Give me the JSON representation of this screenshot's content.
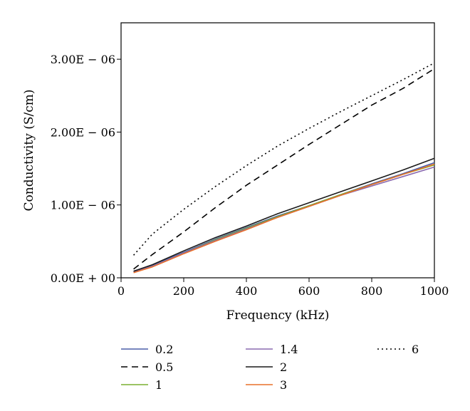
{
  "chart_data": {
    "type": "line",
    "title": "",
    "xlabel": "Frequency (kHz)",
    "ylabel": "Conductivity (S/cm)",
    "xlim": [
      0,
      1000
    ],
    "ylim": [
      0,
      3.5e-06
    ],
    "x_ticks": [
      0,
      200,
      400,
      600,
      800,
      1000
    ],
    "x_tick_labels": [
      "0",
      "200",
      "400",
      "600",
      "800",
      "1000"
    ],
    "y_ticks": [
      0,
      1e-06,
      2e-06,
      3e-06
    ],
    "y_tick_labels": [
      "0.00E + 00",
      "1.00E − 06",
      "2.00E − 06",
      "3.00E − 06"
    ],
    "grid": false,
    "legend_position": "bottom",
    "series": [
      {
        "name": "0.2",
        "color": "#4a5fa8",
        "dash": "solid",
        "x": [
          40,
          100,
          200,
          300,
          400,
          500,
          600,
          700,
          800,
          900,
          1000
        ],
        "y": [
          9e-08,
          1.7e-07,
          3.5e-07,
          5.3e-07,
          6.9e-07,
          8.5e-07,
          9.9e-07,
          1.14e-06,
          1.29e-06,
          1.43e-06,
          1.58e-06
        ]
      },
      {
        "name": "0.5",
        "color": "#000000",
        "dash": "dashed",
        "x": [
          40,
          100,
          200,
          300,
          400,
          500,
          600,
          700,
          800,
          900,
          1000
        ],
        "y": [
          1.2e-07,
          3.2e-07,
          6.3e-07,
          9.6e-07,
          1.27e-06,
          1.55e-06,
          1.83e-06,
          2.1e-06,
          2.37e-06,
          2.6e-06,
          2.87e-06
        ]
      },
      {
        "name": "1",
        "color": "#7ab030",
        "dash": "solid",
        "x": [
          40,
          100,
          200,
          300,
          400,
          500,
          600,
          700,
          800,
          900,
          1000
        ],
        "y": [
          8e-08,
          1.6e-07,
          3.4e-07,
          5.2e-07,
          6.8e-07,
          8.4e-07,
          9.9e-07,
          1.14e-06,
          1.28e-06,
          1.42e-06,
          1.55e-06
        ]
      },
      {
        "name": "1.4",
        "color": "#8a6ab0",
        "dash": "solid",
        "x": [
          40,
          100,
          200,
          300,
          400,
          500,
          600,
          700,
          800,
          900,
          1000
        ],
        "y": [
          8e-08,
          1.6e-07,
          3.4e-07,
          5.1e-07,
          6.7e-07,
          8.3e-07,
          9.8e-07,
          1.13e-06,
          1.26e-06,
          1.39e-06,
          1.52e-06
        ]
      },
      {
        "name": "2",
        "color": "#1a1a1a",
        "dash": "solid",
        "x": [
          40,
          100,
          200,
          300,
          400,
          500,
          600,
          700,
          800,
          900,
          1000
        ],
        "y": [
          9e-08,
          1.8e-07,
          3.7e-07,
          5.5e-07,
          7.1e-07,
          8.8e-07,
          1.03e-06,
          1.18e-06,
          1.33e-06,
          1.48e-06,
          1.64e-06
        ]
      },
      {
        "name": "3",
        "color": "#e8702a",
        "dash": "solid",
        "x": [
          40,
          100,
          200,
          300,
          400,
          500,
          600,
          700,
          800,
          900,
          1000
        ],
        "y": [
          7e-08,
          1.5e-07,
          3.3e-07,
          5e-07,
          6.6e-07,
          8.3e-07,
          9.8e-07,
          1.13e-06,
          1.28e-06,
          1.42e-06,
          1.56e-06
        ]
      },
      {
        "name": "6",
        "color": "#000000",
        "dash": "dotted",
        "x": [
          40,
          100,
          200,
          300,
          400,
          500,
          600,
          700,
          800,
          900,
          1000
        ],
        "y": [
          3.1e-07,
          6e-07,
          9.4e-07,
          1.25e-06,
          1.54e-06,
          1.81e-06,
          2.05e-06,
          2.28e-06,
          2.5e-06,
          2.72e-06,
          2.95e-06
        ]
      }
    ]
  }
}
